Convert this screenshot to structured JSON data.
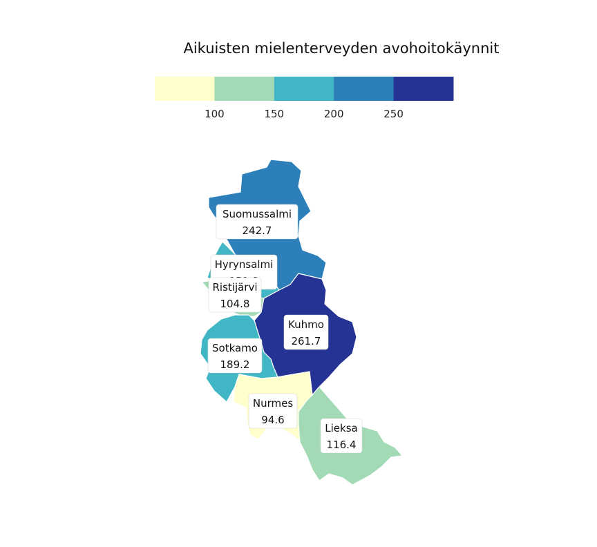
{
  "title": "Aikuisten mielenterveyden avohoitokäynnit",
  "legend": {
    "breaks": [
      100,
      150,
      200,
      250
    ],
    "colors": [
      "#ffffcc",
      "#a1dab4",
      "#41b6c4",
      "#2c7fb8",
      "#253494"
    ]
  },
  "regions": [
    {
      "id": "suomussalmi",
      "name": "Suomussalmi",
      "value": "242.7",
      "color": "#2c7fb8"
    },
    {
      "id": "hyrynsalmi",
      "name": "Hyrynsalmi",
      "value": "151.8",
      "color": "#41b6c4"
    },
    {
      "id": "ristijarvi",
      "name": "Ristijärvi",
      "value": "104.8",
      "color": "#a1dab4"
    },
    {
      "id": "kuhmo",
      "name": "Kuhmo",
      "value": "261.7",
      "color": "#253494"
    },
    {
      "id": "sotkamo",
      "name": "Sotkamo",
      "value": "189.2",
      "color": "#41b6c4"
    },
    {
      "id": "nurmes",
      "name": "Nurmes",
      "value": "94.6",
      "color": "#ffffcc"
    },
    {
      "id": "lieksa",
      "name": "Lieksa",
      "value": "116.4",
      "color": "#a1dab4"
    }
  ]
}
